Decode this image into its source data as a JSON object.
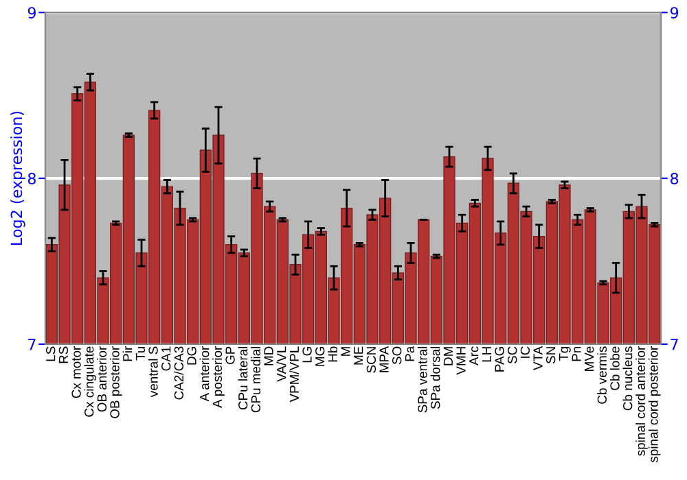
{
  "chart_data": {
    "type": "bar",
    "ylabel": "Log2 (expression)",
    "categories": [
      "LS",
      "RS",
      "Cx motor",
      "Cx cingulate",
      "OB anterior",
      "OB posterior",
      "Pir",
      "Tu",
      "ventral S",
      "CA1",
      "CA2/CA3",
      "DG",
      "A anterior",
      "A posterior",
      "GP",
      "CPu lateral",
      "CPu medial",
      "MD",
      "VA/VL",
      "VPM/VPL",
      "LG",
      "MG",
      "Hb",
      "M",
      "ME",
      "SCN",
      "MPA",
      "SO",
      "Pa",
      "SPa ventral",
      "SPa dorsal",
      "DM",
      "VMH",
      "Arc",
      "LH",
      "PAG",
      "SC",
      "IC",
      "VTA",
      "SN",
      "Tg",
      "Pn",
      "MVe",
      "Cb vermis",
      "Cb lobe",
      "Cb nucleus",
      "spinal cord anterior",
      "spinal cord posterior"
    ],
    "series": [
      {
        "color": "#b23232",
        "values": [
          7.6,
          7.96,
          8.51,
          8.58,
          7.4,
          7.73,
          8.26,
          7.55,
          8.41,
          7.95,
          7.82,
          7.75,
          8.17,
          8.26,
          7.6,
          7.55,
          8.03,
          7.83,
          7.75,
          7.48,
          7.66,
          7.68,
          7.4,
          7.82,
          7.6,
          7.78,
          7.88,
          7.43,
          7.55,
          7.75,
          7.53,
          8.13,
          7.73,
          7.85,
          8.12,
          7.67,
          7.97,
          7.8,
          7.65,
          7.86,
          7.96,
          7.75,
          7.81,
          7.37,
          7.4,
          7.8,
          7.83,
          7.72
        ],
        "errors": [
          0.04,
          0.15,
          0.04,
          0.05,
          0.04,
          0.01,
          0.01,
          0.08,
          0.05,
          0.04,
          0.1,
          0.01,
          0.13,
          0.17,
          0.05,
          0.02,
          0.09,
          0.03,
          0.01,
          0.06,
          0.08,
          0.02,
          0.07,
          0.11,
          0.01,
          0.03,
          0.11,
          0.04,
          0.06,
          null,
          0.01,
          0.06,
          0.05,
          0.02,
          0.07,
          0.07,
          0.06,
          0.03,
          0.07,
          0.01,
          0.02,
          0.03,
          0.01,
          0.01,
          0.09,
          0.04,
          0.07,
          0.01
        ]
      }
    ],
    "ylim": [
      7,
      9
    ],
    "yticks": [
      7,
      8,
      9
    ],
    "y2lim": [
      7,
      9
    ],
    "y2ticks": [
      7,
      8,
      9
    ],
    "grid": "y",
    "legend": false
  }
}
